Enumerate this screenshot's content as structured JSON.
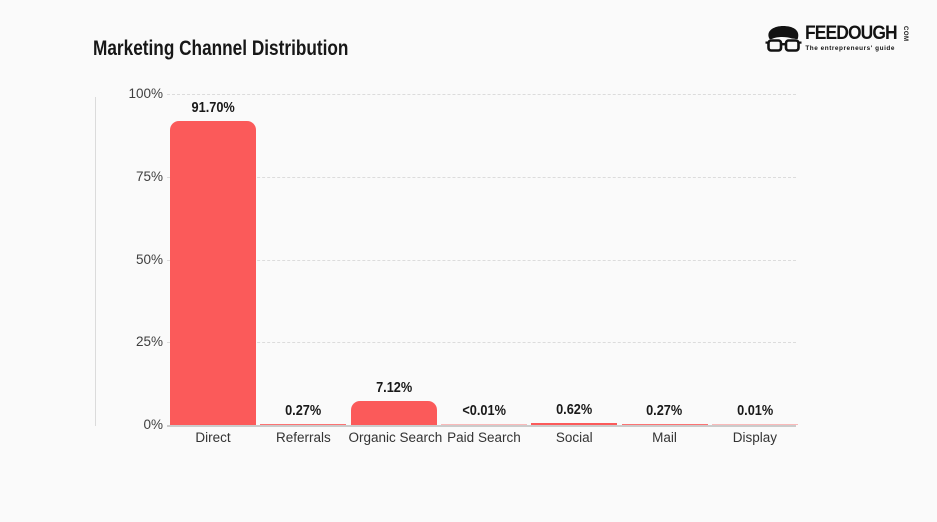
{
  "page": {
    "background": "#fafafa"
  },
  "title": "Marketing Channel Distribution",
  "logo": {
    "wordmark": "FEEDOUGH",
    "tld": "COM",
    "tagline": "The entrepreneurs' guide",
    "color": "#121212",
    "mascot_icon": "glasses-face-icon"
  },
  "chart_data": {
    "type": "bar",
    "title": "Marketing Channel Distribution",
    "categories": [
      "Direct",
      "Referrals",
      "Organic Search",
      "Paid Search",
      "Social",
      "Mail",
      "Display"
    ],
    "values": [
      91.7,
      0.27,
      7.12,
      0.005,
      0.62,
      0.27,
      0.01
    ],
    "value_labels": [
      "91.70%",
      "0.27%",
      "7.12%",
      "<0.01%",
      "0.62%",
      "0.27%",
      "0.01%"
    ],
    "xlabel": "",
    "ylabel": "",
    "ylim": [
      0,
      100
    ],
    "y_ticks": [
      {
        "value": 100,
        "label": "100%"
      },
      {
        "value": 75,
        "label": "75%"
      },
      {
        "value": 50,
        "label": "50%"
      },
      {
        "value": 25,
        "label": "25%"
      },
      {
        "value": 0,
        "label": "0%"
      }
    ],
    "grid": true,
    "legend": "none",
    "bar_color": "#fb5a5a",
    "gridline_color": "#dcdcdc",
    "baseline_color": "#cbcbcb"
  }
}
